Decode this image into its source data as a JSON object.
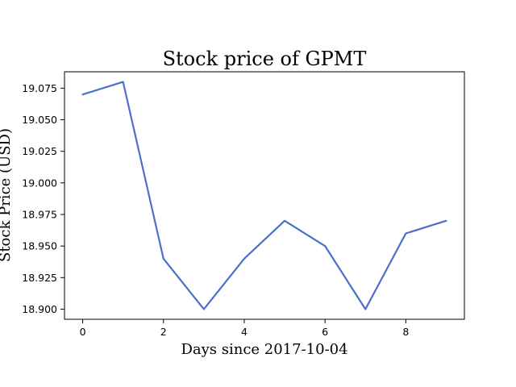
{
  "chart_data": {
    "type": "line",
    "title": "Stock price of GPMT",
    "xlabel": "Days since 2017-10-04",
    "ylabel": "Stock Price (USD)",
    "x": [
      0,
      1,
      2,
      3,
      4,
      5,
      6,
      7,
      8,
      9
    ],
    "series": [
      {
        "values": [
          19.07,
          19.08,
          18.94,
          18.9,
          18.94,
          18.97,
          18.95,
          18.9,
          18.96,
          18.97
        ],
        "color": "#4c6fcc"
      }
    ],
    "xlim": [
      -0.45,
      9.45
    ],
    "ylim": [
      18.892,
      19.088
    ],
    "xticks": [
      0,
      2,
      4,
      6,
      8
    ],
    "xtick_labels": [
      "0",
      "2",
      "4",
      "6",
      "8"
    ],
    "yticks": [
      18.9,
      18.925,
      18.95,
      18.975,
      19.0,
      19.025,
      19.05,
      19.075
    ],
    "ytick_labels": [
      "18.900",
      "18.925",
      "18.950",
      "18.975",
      "19.000",
      "19.025",
      "19.050",
      "19.075"
    ],
    "grid": false,
    "legend": false
  }
}
